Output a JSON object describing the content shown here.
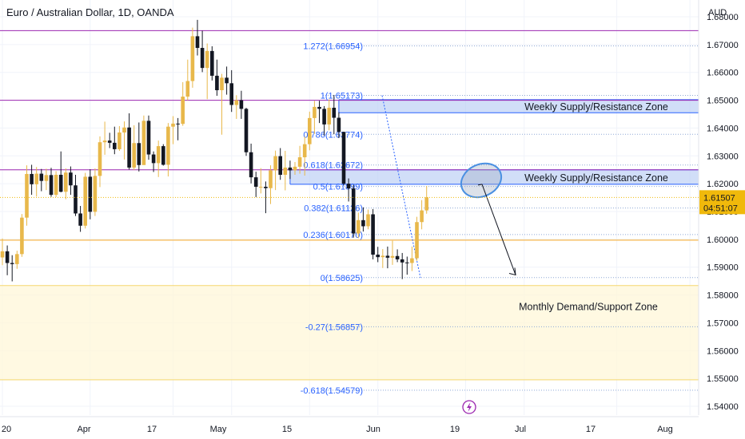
{
  "header": {
    "title": "Euro / Australian Dollar, 1D, OANDA",
    "currency": "AUD"
  },
  "price_tag": {
    "price": "1.61507",
    "countdown": "04:51:07",
    "color": "#f0b90b"
  },
  "chart_data": {
    "type": "candlestick",
    "symbol": "EURAUD",
    "timeframe": "1D",
    "ylim": [
      1.535,
      1.687
    ],
    "yticks": [
      1.68,
      1.67,
      1.66,
      1.65,
      1.64,
      1.63,
      1.62,
      1.61,
      1.6,
      1.59,
      1.58,
      1.57,
      1.56,
      1.55,
      1.54
    ],
    "xticks": [
      "20",
      "Apr",
      "17",
      "May",
      "15",
      "Jun",
      "19",
      "Jul",
      "17",
      "Aug"
    ],
    "x_range": [
      0,
      146
    ],
    "xtick_index": [
      0,
      18,
      35,
      47,
      63,
      77,
      95,
      107,
      126,
      141
    ],
    "candles": [
      {
        "o": 1.5935,
        "h": 1.6003,
        "l": 1.5907,
        "c": 1.5957
      },
      {
        "o": 1.5957,
        "h": 1.5978,
        "l": 1.5871,
        "c": 1.5915
      },
      {
        "o": 1.5915,
        "h": 1.5943,
        "l": 1.5849,
        "c": 1.5911
      },
      {
        "o": 1.5911,
        "h": 1.5959,
        "l": 1.5894,
        "c": 1.5947
      },
      {
        "o": 1.5947,
        "h": 1.6091,
        "l": 1.5937,
        "c": 1.6078
      },
      {
        "o": 1.6078,
        "h": 1.6266,
        "l": 1.6049,
        "c": 1.6235
      },
      {
        "o": 1.6235,
        "h": 1.6268,
        "l": 1.616,
        "c": 1.6198
      },
      {
        "o": 1.6198,
        "h": 1.626,
        "l": 1.6154,
        "c": 1.6236
      },
      {
        "o": 1.6236,
        "h": 1.6253,
        "l": 1.6173,
        "c": 1.621
      },
      {
        "o": 1.621,
        "h": 1.6254,
        "l": 1.6177,
        "c": 1.6231
      },
      {
        "o": 1.6231,
        "h": 1.6257,
        "l": 1.6153,
        "c": 1.616
      },
      {
        "o": 1.616,
        "h": 1.6245,
        "l": 1.6152,
        "c": 1.6232
      },
      {
        "o": 1.6232,
        "h": 1.6316,
        "l": 1.6169,
        "c": 1.6171
      },
      {
        "o": 1.6171,
        "h": 1.6255,
        "l": 1.6144,
        "c": 1.624
      },
      {
        "o": 1.624,
        "h": 1.6262,
        "l": 1.616,
        "c": 1.6194
      },
      {
        "o": 1.6194,
        "h": 1.6232,
        "l": 1.6084,
        "c": 1.6093
      },
      {
        "o": 1.6093,
        "h": 1.612,
        "l": 1.6027,
        "c": 1.6049
      },
      {
        "o": 1.6049,
        "h": 1.6239,
        "l": 1.6039,
        "c": 1.6225
      },
      {
        "o": 1.6225,
        "h": 1.6252,
        "l": 1.6072,
        "c": 1.6099
      },
      {
        "o": 1.6099,
        "h": 1.6255,
        "l": 1.6084,
        "c": 1.6228
      },
      {
        "o": 1.6228,
        "h": 1.637,
        "l": 1.6188,
        "c": 1.6349
      },
      {
        "o": 1.6349,
        "h": 1.6423,
        "l": 1.6304,
        "c": 1.6355
      },
      {
        "o": 1.6355,
        "h": 1.6383,
        "l": 1.6328,
        "c": 1.6347
      },
      {
        "o": 1.6347,
        "h": 1.6405,
        "l": 1.6306,
        "c": 1.6324
      },
      {
        "o": 1.6324,
        "h": 1.6407,
        "l": 1.6318,
        "c": 1.6384
      },
      {
        "o": 1.6384,
        "h": 1.6424,
        "l": 1.6287,
        "c": 1.6402
      },
      {
        "o": 1.6402,
        "h": 1.6453,
        "l": 1.6251,
        "c": 1.6258
      },
      {
        "o": 1.6258,
        "h": 1.641,
        "l": 1.6249,
        "c": 1.6346
      },
      {
        "o": 1.6346,
        "h": 1.642,
        "l": 1.6244,
        "c": 1.6267
      },
      {
        "o": 1.6267,
        "h": 1.6445,
        "l": 1.6273,
        "c": 1.6426
      },
      {
        "o": 1.6426,
        "h": 1.6445,
        "l": 1.6286,
        "c": 1.6305
      },
      {
        "o": 1.6305,
        "h": 1.6316,
        "l": 1.6242,
        "c": 1.6274
      },
      {
        "o": 1.6274,
        "h": 1.6355,
        "l": 1.6224,
        "c": 1.6335
      },
      {
        "o": 1.6335,
        "h": 1.6342,
        "l": 1.6265,
        "c": 1.6268
      },
      {
        "o": 1.6268,
        "h": 1.6418,
        "l": 1.6226,
        "c": 1.6405
      },
      {
        "o": 1.6405,
        "h": 1.6443,
        "l": 1.6342,
        "c": 1.6416
      },
      {
        "o": 1.6416,
        "h": 1.6436,
        "l": 1.6356,
        "c": 1.6415
      },
      {
        "o": 1.6415,
        "h": 1.6565,
        "l": 1.6408,
        "c": 1.6513
      },
      {
        "o": 1.6513,
        "h": 1.6646,
        "l": 1.65,
        "c": 1.6569
      },
      {
        "o": 1.6569,
        "h": 1.6761,
        "l": 1.6545,
        "c": 1.673
      },
      {
        "o": 1.673,
        "h": 1.6789,
        "l": 1.6661,
        "c": 1.6688
      },
      {
        "o": 1.6688,
        "h": 1.675,
        "l": 1.6601,
        "c": 1.6616
      },
      {
        "o": 1.6616,
        "h": 1.6704,
        "l": 1.6504,
        "c": 1.6677
      },
      {
        "o": 1.6677,
        "h": 1.6694,
        "l": 1.6571,
        "c": 1.6588
      },
      {
        "o": 1.6588,
        "h": 1.6646,
        "l": 1.6516,
        "c": 1.6536
      },
      {
        "o": 1.6536,
        "h": 1.6595,
        "l": 1.6376,
        "c": 1.6581
      },
      {
        "o": 1.6581,
        "h": 1.6621,
        "l": 1.652,
        "c": 1.6561
      },
      {
        "o": 1.6561,
        "h": 1.6608,
        "l": 1.6458,
        "c": 1.6483
      },
      {
        "o": 1.6483,
        "h": 1.6518,
        "l": 1.6433,
        "c": 1.65
      },
      {
        "o": 1.65,
        "h": 1.6534,
        "l": 1.6433,
        "c": 1.6469
      },
      {
        "o": 1.6469,
        "h": 1.6473,
        "l": 1.63,
        "c": 1.6313
      },
      {
        "o": 1.6313,
        "h": 1.6344,
        "l": 1.6201,
        "c": 1.6223
      },
      {
        "o": 1.6223,
        "h": 1.6243,
        "l": 1.6152,
        "c": 1.6189
      },
      {
        "o": 1.6189,
        "h": 1.6256,
        "l": 1.6165,
        "c": 1.6189
      },
      {
        "o": 1.6189,
        "h": 1.6208,
        "l": 1.6094,
        "c": 1.6184
      },
      {
        "o": 1.6184,
        "h": 1.6266,
        "l": 1.6127,
        "c": 1.6248
      },
      {
        "o": 1.6248,
        "h": 1.6319,
        "l": 1.6177,
        "c": 1.6299
      },
      {
        "o": 1.6299,
        "h": 1.6328,
        "l": 1.6214,
        "c": 1.6232
      },
      {
        "o": 1.6232,
        "h": 1.6318,
        "l": 1.6176,
        "c": 1.6258
      },
      {
        "o": 1.6258,
        "h": 1.6283,
        "l": 1.6217,
        "c": 1.6248
      },
      {
        "o": 1.6248,
        "h": 1.6278,
        "l": 1.6232,
        "c": 1.6261
      },
      {
        "o": 1.6261,
        "h": 1.6336,
        "l": 1.6236,
        "c": 1.6295
      },
      {
        "o": 1.6295,
        "h": 1.6369,
        "l": 1.6229,
        "c": 1.6342
      },
      {
        "o": 1.6342,
        "h": 1.6459,
        "l": 1.632,
        "c": 1.6436
      },
      {
        "o": 1.6436,
        "h": 1.6498,
        "l": 1.6379,
        "c": 1.6476
      },
      {
        "o": 1.6476,
        "h": 1.6498,
        "l": 1.6418,
        "c": 1.6469
      },
      {
        "o": 1.6469,
        "h": 1.6479,
        "l": 1.6373,
        "c": 1.6413
      },
      {
        "o": 1.6413,
        "h": 1.6503,
        "l": 1.6392,
        "c": 1.6473
      },
      {
        "o": 1.6473,
        "h": 1.6519,
        "l": 1.6378,
        "c": 1.6437
      },
      {
        "o": 1.6437,
        "h": 1.6457,
        "l": 1.6364,
        "c": 1.6386
      },
      {
        "o": 1.6386,
        "h": 1.6387,
        "l": 1.6194,
        "c": 1.62
      },
      {
        "o": 1.62,
        "h": 1.6219,
        "l": 1.6136,
        "c": 1.6183
      },
      {
        "o": 1.6183,
        "h": 1.6196,
        "l": 1.6006,
        "c": 1.6021
      },
      {
        "o": 1.6021,
        "h": 1.6096,
        "l": 1.6004,
        "c": 1.6069
      },
      {
        "o": 1.6069,
        "h": 1.6115,
        "l": 1.6028,
        "c": 1.6047
      },
      {
        "o": 1.6047,
        "h": 1.6107,
        "l": 1.6036,
        "c": 1.609
      },
      {
        "o": 1.609,
        "h": 1.6109,
        "l": 1.5928,
        "c": 1.5945
      },
      {
        "o": 1.5945,
        "h": 1.5973,
        "l": 1.5918,
        "c": 1.5936
      },
      {
        "o": 1.5936,
        "h": 1.5965,
        "l": 1.5897,
        "c": 1.5941
      },
      {
        "o": 1.5941,
        "h": 1.5974,
        "l": 1.5896,
        "c": 1.5934
      },
      {
        "o": 1.5934,
        "h": 1.5995,
        "l": 1.5908,
        "c": 1.594
      },
      {
        "o": 1.594,
        "h": 1.5964,
        "l": 1.5918,
        "c": 1.5928
      },
      {
        "o": 1.5928,
        "h": 1.5951,
        "l": 1.5857,
        "c": 1.5917
      },
      {
        "o": 1.5917,
        "h": 1.5938,
        "l": 1.5873,
        "c": 1.5915
      },
      {
        "o": 1.5915,
        "h": 1.5974,
        "l": 1.5886,
        "c": 1.5932
      },
      {
        "o": 1.5932,
        "h": 1.6081,
        "l": 1.5923,
        "c": 1.6062
      },
      {
        "o": 1.6062,
        "h": 1.6141,
        "l": 1.6036,
        "c": 1.6104
      },
      {
        "o": 1.6104,
        "h": 1.6192,
        "l": 1.6092,
        "c": 1.6151
      }
    ],
    "candle_x_start": 5,
    "candle_x_step": 1.1,
    "colors": {
      "up": "#e8b84b",
      "down": "#131722"
    },
    "horizontal_lines": [
      {
        "price": 1.675,
        "color": "#9c27b0",
        "role": "resistance"
      },
      {
        "price": 1.65,
        "color": "#9c27b0",
        "role": "resistance"
      },
      {
        "price": 1.625,
        "color": "#9c27b0",
        "role": "resistance"
      },
      {
        "price": 1.5997,
        "color": "#f5a623",
        "role": "support"
      }
    ],
    "zones": [
      {
        "label": "Weekly Supply/Resistance Zone",
        "from": 1.6455,
        "to": 1.6502,
        "color": "#b8cdf5",
        "border": "#2962ff",
        "x_start": 69
      },
      {
        "label": "Weekly Supply/Resistance Zone",
        "from": 1.6198,
        "to": 1.625,
        "color": "#b8cdf5",
        "border": "#2962ff",
        "x_start": 59
      },
      {
        "label": "Monthly Demand/Support Zone",
        "from": 1.5495,
        "to": 1.5834,
        "color": "#fff7d6",
        "border": "#f5d76e",
        "x_start": 0
      }
    ],
    "fibonacci": {
      "color": "#2962ff",
      "levels": [
        {
          "label": "1.272(1.66954)",
          "price": 1.66954
        },
        {
          "label": "1(1.65173)",
          "price": 1.65173
        },
        {
          "label": "0.786(1.63774)",
          "price": 1.63774
        },
        {
          "label": "0.618(1.62672)",
          "price": 1.62672
        },
        {
          "label": "0.5(1.61899)",
          "price": 1.61899
        },
        {
          "label": "0.382(1.61126)",
          "price": 1.61126
        },
        {
          "label": "0.236(1.60170)",
          "price": 1.6017
        },
        {
          "label": "0(1.58625)",
          "price": 1.58625
        },
        {
          "label": "-0.27(1.56857)",
          "price": 1.56857
        },
        {
          "label": "-0.618(1.54579)",
          "price": 1.54579
        }
      ]
    },
    "projection_arrow": {
      "from_index": 106,
      "from_price": 1.62,
      "to_index": 118,
      "to_price": 1.586
    },
    "highlight_ellipse": {
      "center_index": 108,
      "center_price": 1.62,
      "color": "#4a90e2"
    },
    "zone_labels_x_index": 120,
    "zone_label_demand_x_index": 122
  },
  "event_marker": {
    "icon": "lightning-icon",
    "color": "#9c27b0"
  }
}
